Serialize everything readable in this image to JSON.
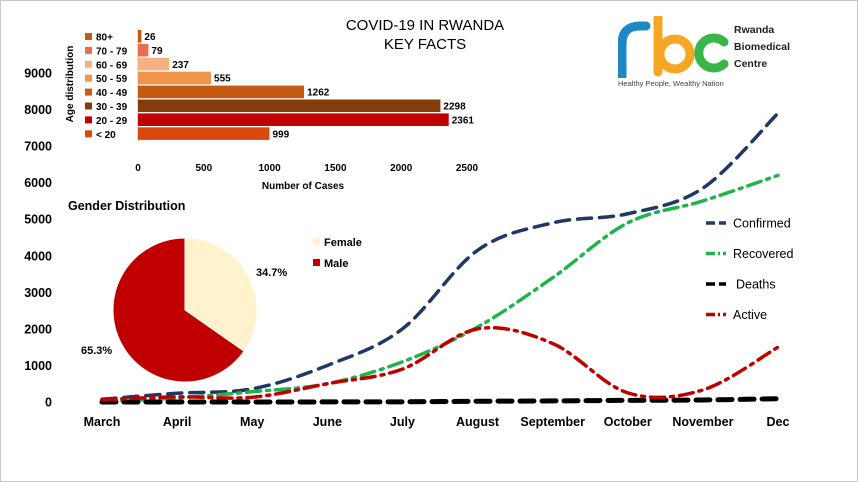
{
  "title_line1": "COVID-19 IN RWANDA",
  "title_line2": "KEY FACTS",
  "logo": {
    "letters": "rbc",
    "name_lines": [
      "Rwanda",
      "Biomedical",
      "Centre"
    ],
    "tagline": "Healthy People, Wealthy Nation",
    "colors": {
      "r": "#1e88c7",
      "b": "#f5a623",
      "c": "#39b54a"
    }
  },
  "chart_data": [
    {
      "type": "line",
      "x": [
        "March",
        "April",
        "May",
        "June",
        "July",
        "August",
        "September",
        "October",
        "November",
        "Dec"
      ],
      "yticks": [
        0,
        1000,
        2000,
        3000,
        4000,
        5000,
        6000,
        7000,
        8000,
        9000
      ],
      "ylim": [
        0,
        9000
      ],
      "legend_position": "right",
      "series": [
        {
          "name": "Confirmed",
          "color": "#1f3864",
          "style": "dash",
          "values": [
            75,
            240,
            360,
            1000,
            2000,
            4150,
            4900,
            5150,
            5850,
            7900
          ]
        },
        {
          "name": "Recovered",
          "color": "#22b24c",
          "style": "dashdot",
          "values": [
            10,
            110,
            280,
            500,
            1100,
            2050,
            3400,
            4900,
            5500,
            6200
          ]
        },
        {
          "name": "Deaths",
          "color": "#000000",
          "style": "dash",
          "values": [
            0,
            0,
            0,
            2,
            5,
            20,
            30,
            45,
            55,
            90
          ]
        },
        {
          "name": "Active",
          "color": "#c00000",
          "style": "dashdot",
          "values": [
            65,
            140,
            130,
            500,
            900,
            2000,
            1600,
            250,
            330,
            1500
          ]
        }
      ]
    },
    {
      "type": "bar",
      "orientation": "horizontal",
      "categories": [
        "80+",
        "70 - 79",
        "60 - 69",
        "50 - 59",
        "40 - 49",
        "30 - 39",
        "20 - 29",
        "< 20"
      ],
      "values": [
        26,
        79,
        237,
        555,
        1262,
        2298,
        2361,
        999
      ],
      "colors": [
        "#c55a11",
        "#ee6b4d",
        "#f4b183",
        "#f3944b",
        "#c55a11",
        "#843c0c",
        "#c00000",
        "#d9480f"
      ],
      "xticks": [
        0,
        500,
        1000,
        1500,
        2000,
        2500
      ],
      "xlim": [
        0,
        2500
      ],
      "xlabel": "Number of Cases",
      "ylabel": "Age distribution"
    },
    {
      "type": "pie",
      "title": "Gender Distribution",
      "slices": [
        {
          "label": "Female",
          "value": 34.7,
          "display": "34.7%",
          "color": "#fff2cc"
        },
        {
          "label": "Male",
          "value": 65.3,
          "display": "65.3%",
          "color": "#c00000"
        }
      ]
    }
  ]
}
